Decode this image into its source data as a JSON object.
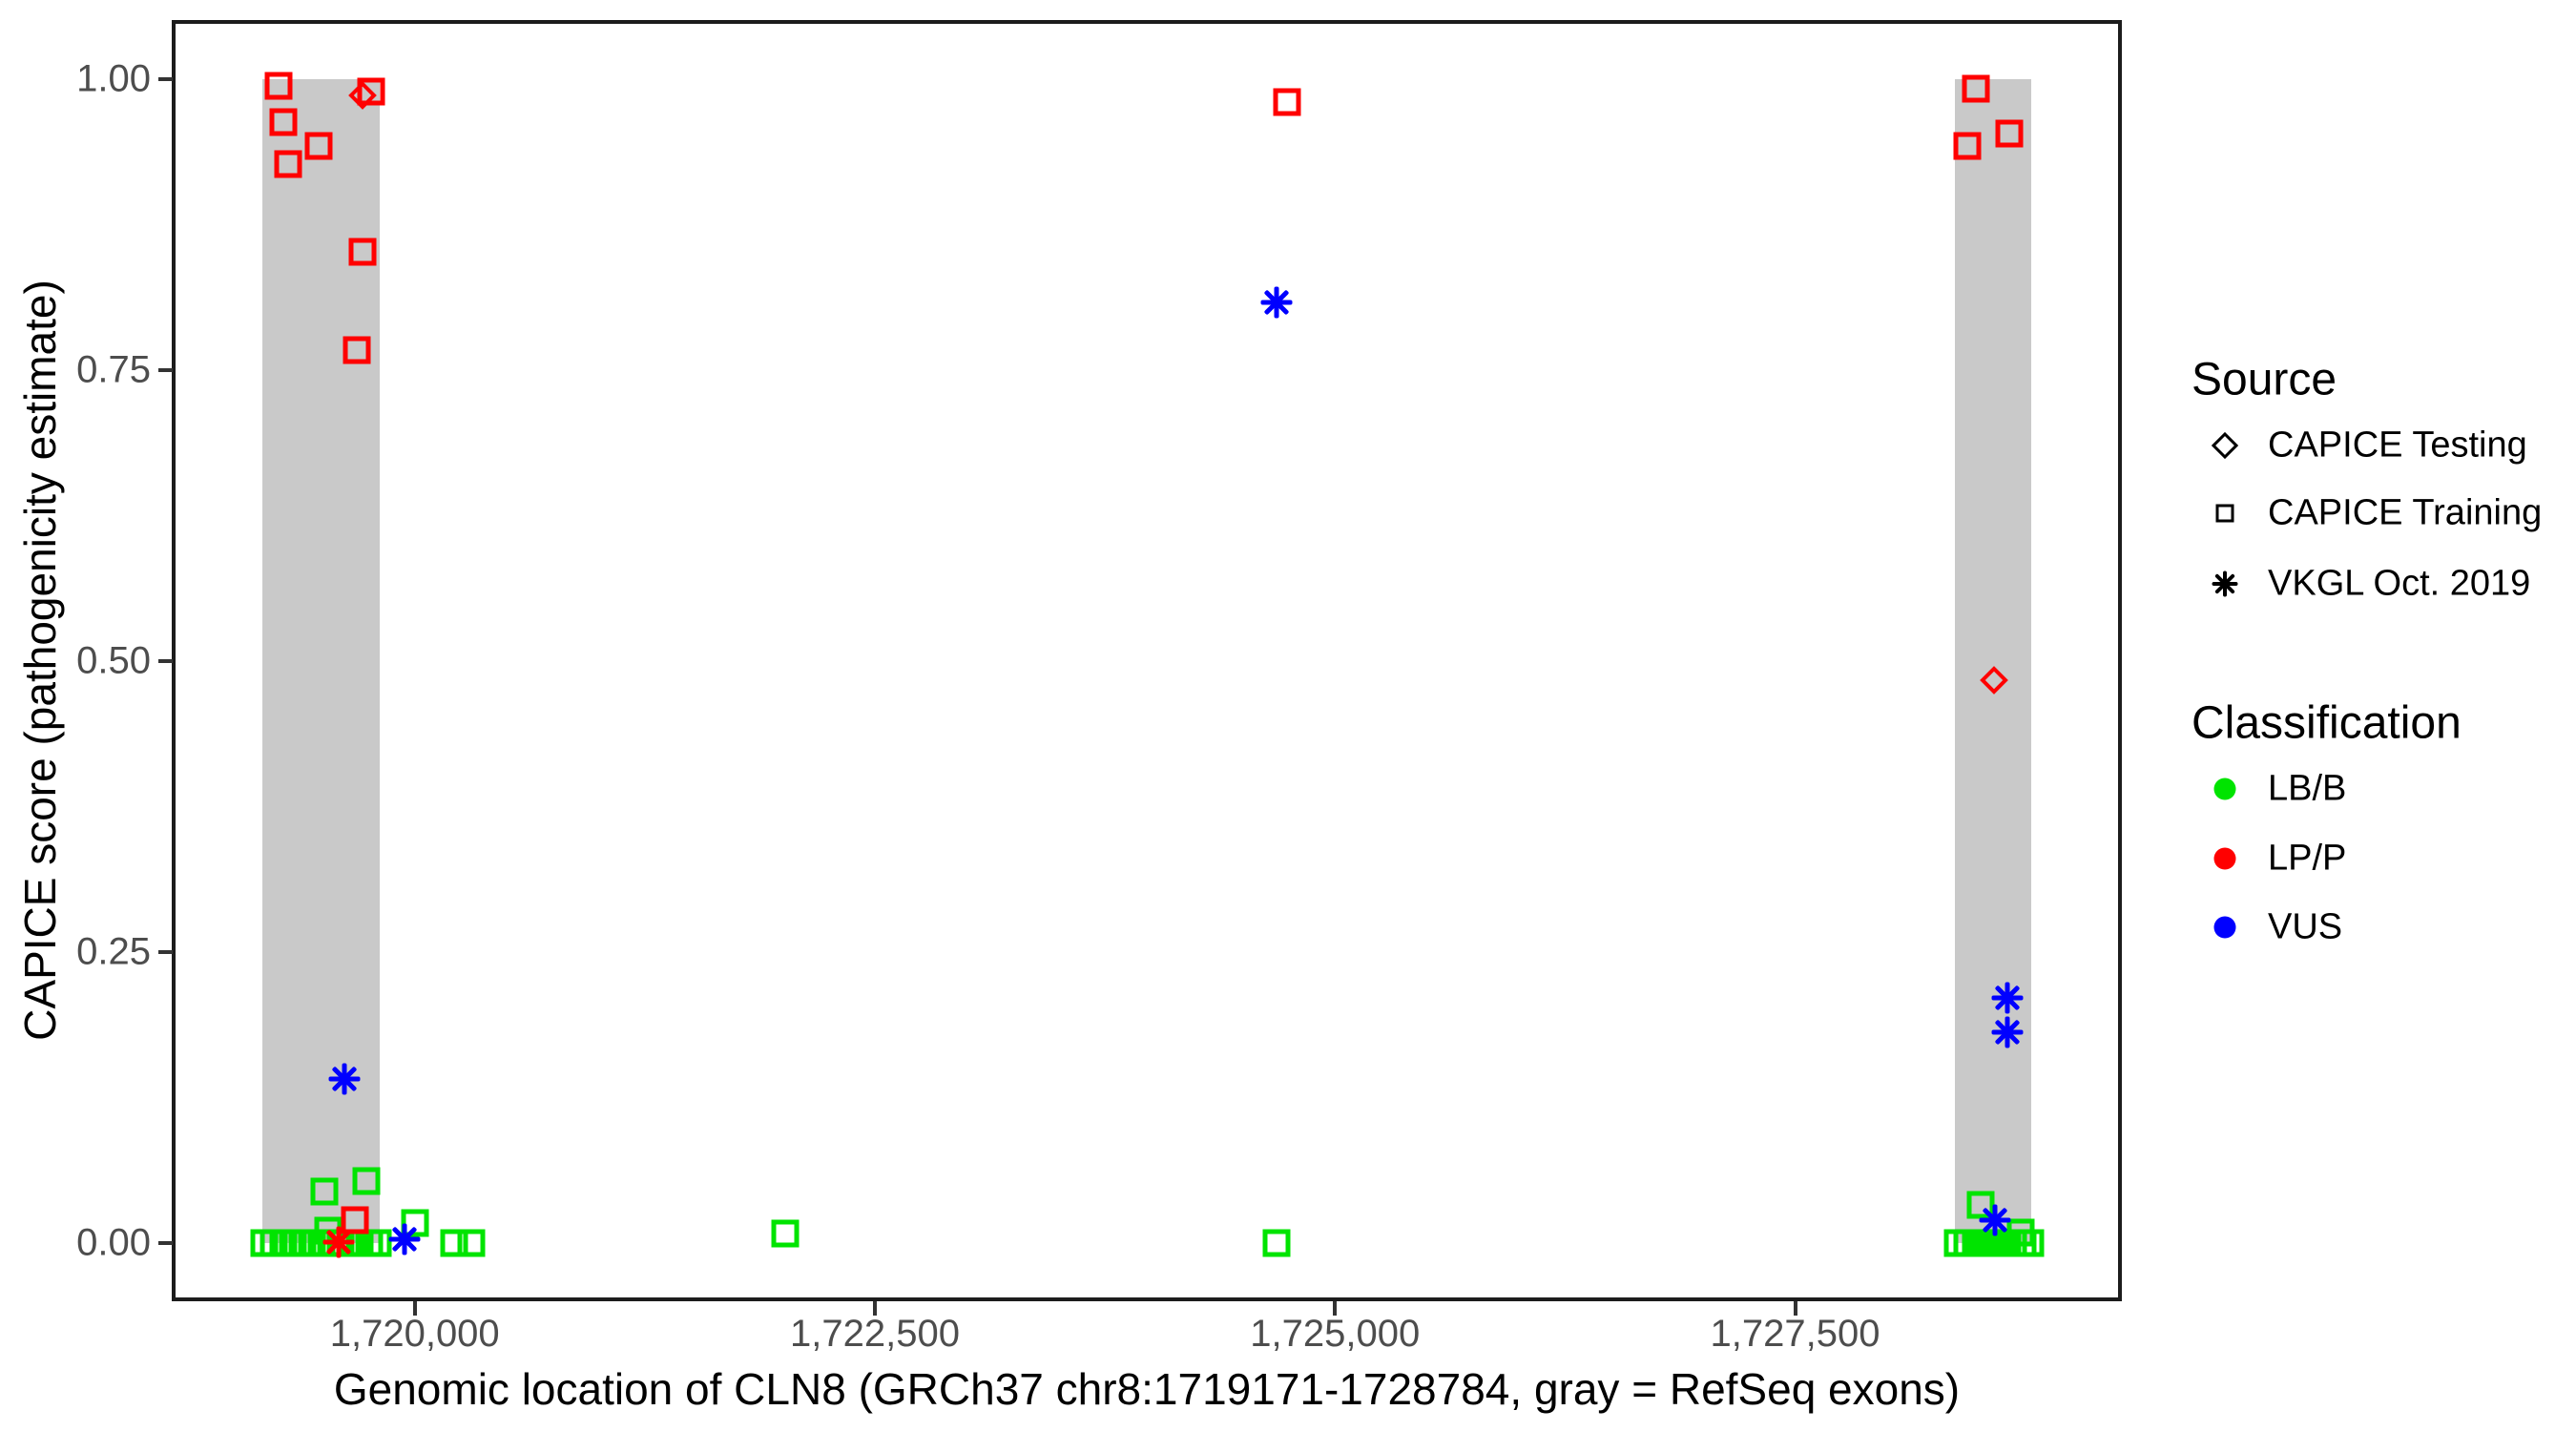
{
  "chart_data": {
    "type": "scatter",
    "title": "",
    "xlabel": "Genomic location of CLN8 (GRCh37 chr8:1719171-1728784, gray = RefSeq exons)",
    "ylabel": "CAPICE score (pathogenicity estimate)",
    "xlim": [
      1718690,
      1729265
    ],
    "ylim": [
      0,
      1
    ],
    "grid": "off",
    "x_ticks": {
      "values": [
        1720000,
        1722500,
        1725000,
        1727500
      ],
      "labels": [
        "1,720,000",
        "1,722,500",
        "1,725,000",
        "1,727,500"
      ]
    },
    "y_ticks": {
      "values": [
        0,
        0.25,
        0.5,
        0.75,
        1.0
      ],
      "labels": [
        "0.00",
        "0.25",
        "0.50",
        "0.75",
        "1.00"
      ]
    },
    "exons_gray_refseq": [
      {
        "start": 1719171,
        "end": 1719812
      },
      {
        "start": 1728368,
        "end": 1728784
      }
    ],
    "colors": {
      "lbb": "#00e400",
      "lpp": "#ff0000",
      "vus": "#0000ff",
      "exon": "#c9c9c9",
      "axis": "#1c1c1c",
      "tick_label": "#4d4d4d"
    },
    "shape_by_source": {
      "testing": "diamond",
      "training": "square",
      "vkgl": "asterisk"
    },
    "points": [
      {
        "g": 1719180,
        "s": 0.0,
        "src": "training",
        "cls": "lbb"
      },
      {
        "g": 1719232,
        "s": 0.0,
        "src": "training",
        "cls": "lbb"
      },
      {
        "g": 1719284,
        "s": 0.0,
        "src": "training",
        "cls": "lbb"
      },
      {
        "g": 1719336,
        "s": 0.0,
        "src": "training",
        "cls": "lbb"
      },
      {
        "g": 1719388,
        "s": 0.0,
        "src": "training",
        "cls": "lbb"
      },
      {
        "g": 1719440,
        "s": 0.0,
        "src": "training",
        "cls": "lbb"
      },
      {
        "g": 1719492,
        "s": 0.0,
        "src": "training",
        "cls": "lbb"
      },
      {
        "g": 1719544,
        "s": 0.0,
        "src": "training",
        "cls": "lbb"
      },
      {
        "g": 1719596,
        "s": 0.0,
        "src": "training",
        "cls": "lbb"
      },
      {
        "g": 1719648,
        "s": 0.0,
        "src": "training",
        "cls": "lbb"
      },
      {
        "g": 1719700,
        "s": 0.0,
        "src": "training",
        "cls": "lbb"
      },
      {
        "g": 1719752,
        "s": 0.0,
        "src": "training",
        "cls": "lbb"
      },
      {
        "g": 1719800,
        "s": 0.0,
        "src": "training",
        "cls": "lbb"
      },
      {
        "g": 1719530,
        "s": 0.011,
        "src": "training",
        "cls": "lbb"
      },
      {
        "g": 1719509,
        "s": 0.044,
        "src": "training",
        "cls": "lbb"
      },
      {
        "g": 1719737,
        "s": 0.053,
        "src": "training",
        "cls": "lbb"
      },
      {
        "g": 1720002,
        "s": 0.017,
        "src": "training",
        "cls": "lbb"
      },
      {
        "g": 1720214,
        "s": 0.0,
        "src": "training",
        "cls": "lbb"
      },
      {
        "g": 1720307,
        "s": 0.0,
        "src": "training",
        "cls": "lbb"
      },
      {
        "g": 1722013,
        "s": 0.008,
        "src": "training",
        "cls": "lbb"
      },
      {
        "g": 1724682,
        "s": 0.0,
        "src": "training",
        "cls": "lbb"
      },
      {
        "g": 1728384,
        "s": 0.0,
        "src": "training",
        "cls": "lbb"
      },
      {
        "g": 1728434,
        "s": 0.0,
        "src": "training",
        "cls": "lbb"
      },
      {
        "g": 1728484,
        "s": 0.0,
        "src": "training",
        "cls": "lbb"
      },
      {
        "g": 1728534,
        "s": 0.0,
        "src": "training",
        "cls": "lbb"
      },
      {
        "g": 1728584,
        "s": 0.0,
        "src": "training",
        "cls": "lbb"
      },
      {
        "g": 1728634,
        "s": 0.0,
        "src": "training",
        "cls": "lbb"
      },
      {
        "g": 1728684,
        "s": 0.0,
        "src": "training",
        "cls": "lbb"
      },
      {
        "g": 1728734,
        "s": 0.0,
        "src": "training",
        "cls": "lbb"
      },
      {
        "g": 1728778,
        "s": 0.0,
        "src": "training",
        "cls": "lbb"
      },
      {
        "g": 1728508,
        "s": 0.033,
        "src": "training",
        "cls": "lbb"
      },
      {
        "g": 1728726,
        "s": 0.009,
        "src": "training",
        "cls": "lbb"
      },
      {
        "g": 1719260,
        "s": 0.994,
        "src": "training",
        "cls": "lpp"
      },
      {
        "g": 1719286,
        "s": 0.963,
        "src": "training",
        "cls": "lpp"
      },
      {
        "g": 1719478,
        "s": 0.943,
        "src": "training",
        "cls": "lpp"
      },
      {
        "g": 1719312,
        "s": 0.927,
        "src": "training",
        "cls": "lpp"
      },
      {
        "g": 1719763,
        "s": 0.989,
        "src": "training",
        "cls": "lpp"
      },
      {
        "g": 1719716,
        "s": 0.852,
        "src": "training",
        "cls": "lpp"
      },
      {
        "g": 1719685,
        "s": 0.767,
        "src": "training",
        "cls": "lpp"
      },
      {
        "g": 1719675,
        "s": 0.02,
        "src": "training",
        "cls": "lpp"
      },
      {
        "g": 1724739,
        "s": 0.98,
        "src": "training",
        "cls": "lpp"
      },
      {
        "g": 1728482,
        "s": 0.992,
        "src": "training",
        "cls": "lpp"
      },
      {
        "g": 1728435,
        "s": 0.943,
        "src": "training",
        "cls": "lpp"
      },
      {
        "g": 1728663,
        "s": 0.953,
        "src": "training",
        "cls": "lpp"
      },
      {
        "g": 1719716,
        "s": 0.986,
        "src": "testing",
        "cls": "lpp"
      },
      {
        "g": 1728580,
        "s": 0.484,
        "src": "testing",
        "cls": "lpp"
      },
      {
        "g": 1719587,
        "s": 0.001,
        "src": "vkgl",
        "cls": "lpp"
      },
      {
        "g": 1719618,
        "s": 0.141,
        "src": "vkgl",
        "cls": "vus"
      },
      {
        "g": 1719944,
        "s": 0.003,
        "src": "vkgl",
        "cls": "vus"
      },
      {
        "g": 1724682,
        "s": 0.808,
        "src": "vkgl",
        "cls": "vus"
      },
      {
        "g": 1728653,
        "s": 0.211,
        "src": "vkgl",
        "cls": "vus"
      },
      {
        "g": 1728653,
        "s": 0.181,
        "src": "vkgl",
        "cls": "vus"
      },
      {
        "g": 1728585,
        "s": 0.02,
        "src": "vkgl",
        "cls": "vus"
      }
    ],
    "legend": {
      "position": "right",
      "source": {
        "title": "Source",
        "items": [
          {
            "symbol": "diamond",
            "label": "CAPICE Testing"
          },
          {
            "symbol": "square",
            "label": "CAPICE Training"
          },
          {
            "symbol": "asterisk",
            "label": "VKGL Oct. 2019"
          }
        ]
      },
      "classification": {
        "title": "Classification",
        "items": [
          {
            "color": "#00e400",
            "label": "LB/B"
          },
          {
            "color": "#ff0000",
            "label": "LP/P"
          },
          {
            "color": "#0000ff",
            "label": "VUS"
          }
        ]
      }
    }
  }
}
